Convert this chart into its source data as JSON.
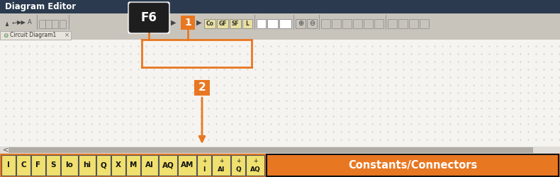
{
  "title": "Diagram Editor",
  "title_bg": "#2b3a4e",
  "title_text_color": "#ffffff",
  "toolbar_bg": "#c8c4bc",
  "canvas_bg": "#f4f4f4",
  "canvas_dot_color": "#aaaaaa",
  "tab_text": "Circuit Diagram1",
  "orange": "#e87722",
  "f6_key_bg": "#1e1e1e",
  "f6_key_text": "F6",
  "f6_key_text_color": "#ffffff",
  "badge1_text": "1",
  "badge2_text": "2",
  "constants_text": "Constants/Connectors",
  "constants_bg": "#e87722",
  "constants_text_color": "#ffffff",
  "bottom_bar_bg": "#e87722",
  "bottom_tabs": [
    "I",
    "C",
    "F",
    "S",
    "lo",
    "hi",
    "Q",
    "X",
    "M",
    "AI",
    "AQ",
    "AM"
  ],
  "special_tabs": [
    "+I",
    "+AI",
    "+Q",
    "+AQ"
  ],
  "tab_item_bg": "#f0e070",
  "tab_item_border": "#555555",
  "white": "#ffffff",
  "light_gray": "#e0ddd8",
  "med_gray": "#b0aca4"
}
